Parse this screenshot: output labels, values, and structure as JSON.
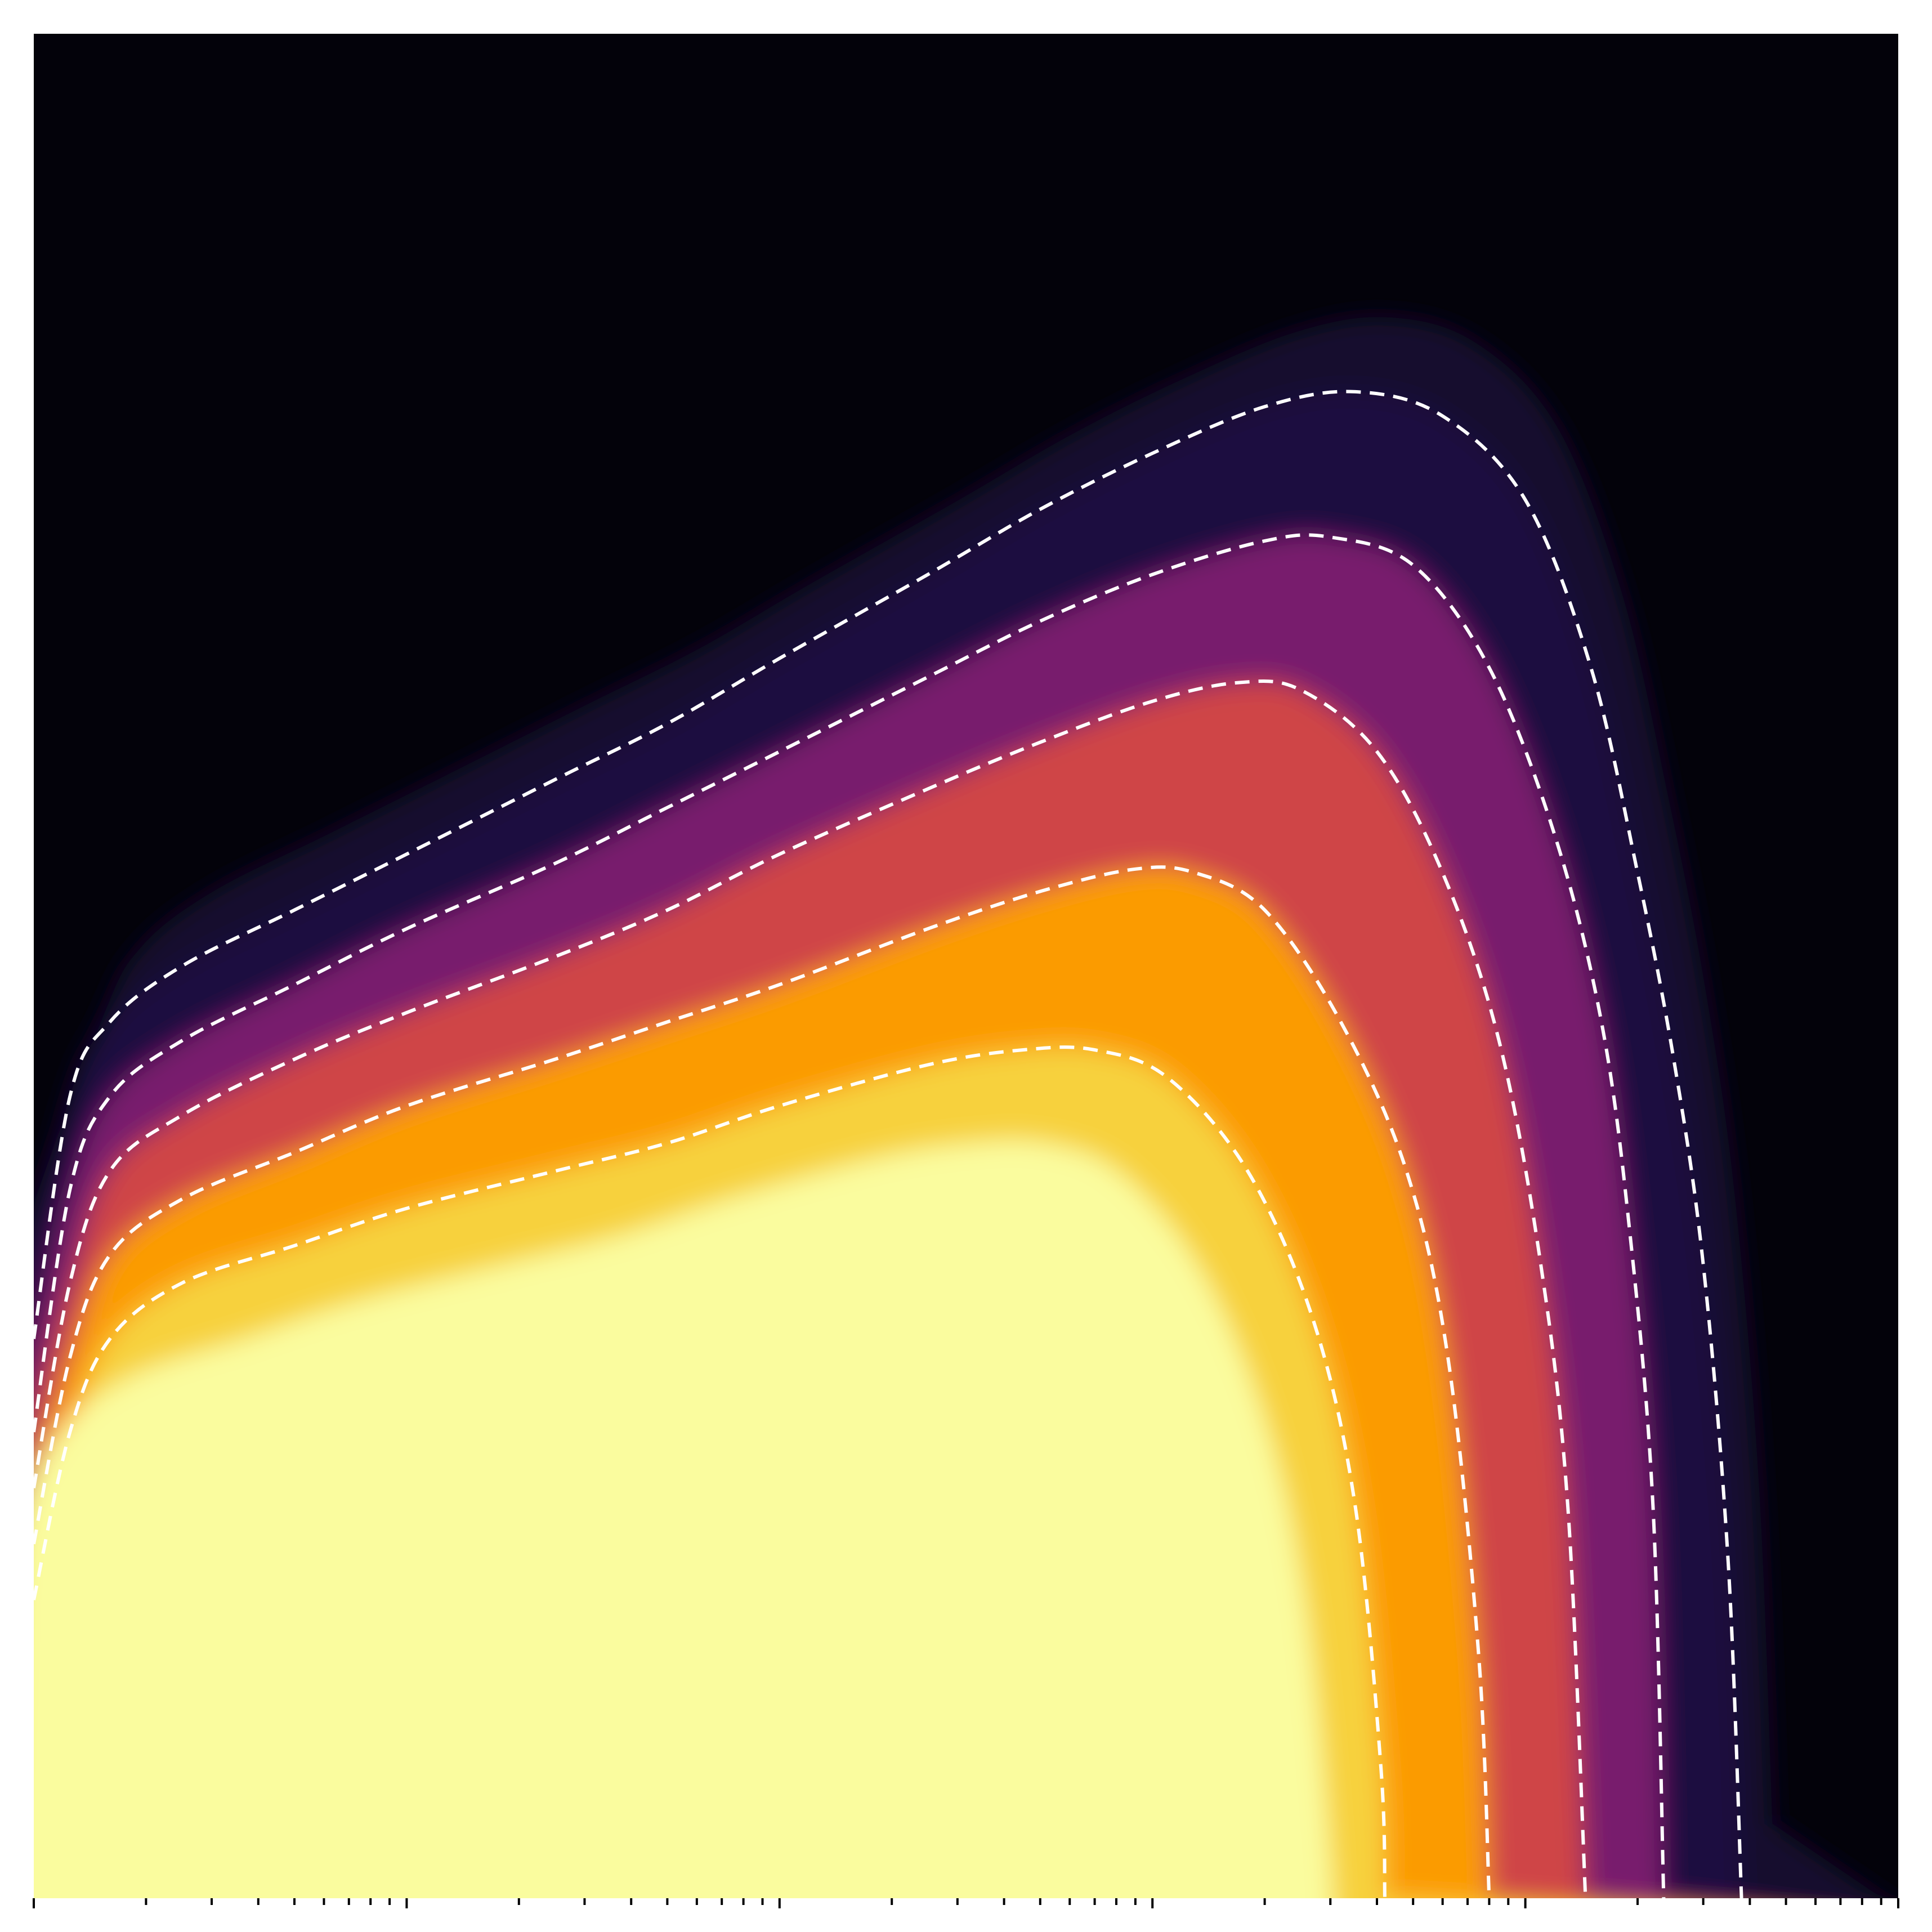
{
  "chart_data": {
    "type": "heatmap",
    "title": "",
    "xlabel": "",
    "ylabel": "",
    "x_scale": "log",
    "xlim": [
      1,
      100000
    ],
    "ylim": [
      0,
      1
    ],
    "tick_labels_visible": false,
    "colormap": "inferno",
    "colormap_stops": [
      "#000004",
      "#1b0c41",
      "#4a0c6b",
      "#781c6d",
      "#a52c60",
      "#cf4446",
      "#ed6925",
      "#fb9b06",
      "#f7d13d",
      "#fcffa4"
    ],
    "plateau_color": "#fafc9e",
    "background_color": "#03020a",
    "contours": [
      {
        "level": 0.1,
        "style": "dashed",
        "color": "#ffffff",
        "points": [
          [
            1.0,
            0.3
          ],
          [
            1.25,
            0.43
          ],
          [
            1.6,
            0.47
          ],
          [
            2.5,
            0.5
          ],
          [
            5,
            0.53
          ],
          [
            10,
            0.56
          ],
          [
            25,
            0.6
          ],
          [
            50,
            0.63
          ],
          [
            100,
            0.665
          ],
          [
            250,
            0.71
          ],
          [
            500,
            0.745
          ],
          [
            1000,
            0.775
          ],
          [
            2000,
            0.8
          ],
          [
            3500,
            0.808
          ],
          [
            6000,
            0.795
          ],
          [
            10000,
            0.75
          ],
          [
            15000,
            0.66
          ],
          [
            20000,
            0.55
          ],
          [
            25000,
            0.45
          ],
          [
            30000,
            0.34
          ],
          [
            35000,
            0.18
          ],
          [
            38000,
            0.0
          ]
        ]
      },
      {
        "level": 0.3,
        "style": "dashed",
        "color": "#ffffff",
        "points": [
          [
            1.0,
            0.25
          ],
          [
            1.25,
            0.38
          ],
          [
            1.6,
            0.43
          ],
          [
            2.5,
            0.46
          ],
          [
            5,
            0.49
          ],
          [
            10,
            0.52
          ],
          [
            25,
            0.555
          ],
          [
            50,
            0.585
          ],
          [
            100,
            0.615
          ],
          [
            250,
            0.655
          ],
          [
            500,
            0.685
          ],
          [
            1000,
            0.71
          ],
          [
            2000,
            0.728
          ],
          [
            3000,
            0.73
          ],
          [
            5000,
            0.715
          ],
          [
            8000,
            0.66
          ],
          [
            12000,
            0.57
          ],
          [
            16000,
            0.47
          ],
          [
            19000,
            0.36
          ],
          [
            22000,
            0.21
          ],
          [
            23500,
            0.0
          ]
        ]
      },
      {
        "level": 0.5,
        "style": "dashed",
        "color": "#ffffff",
        "points": [
          [
            1.0,
            0.22
          ],
          [
            1.25,
            0.33
          ],
          [
            1.6,
            0.39
          ],
          [
            2.5,
            0.42
          ],
          [
            5,
            0.45
          ],
          [
            10,
            0.475
          ],
          [
            25,
            0.505
          ],
          [
            50,
            0.53
          ],
          [
            100,
            0.56
          ],
          [
            250,
            0.595
          ],
          [
            500,
            0.62
          ],
          [
            1000,
            0.642
          ],
          [
            1700,
            0.652
          ],
          [
            2500,
            0.648
          ],
          [
            4000,
            0.615
          ],
          [
            6000,
            0.55
          ],
          [
            8500,
            0.46
          ],
          [
            11000,
            0.34
          ],
          [
            13000,
            0.21
          ],
          [
            14500,
            0.0
          ]
        ]
      },
      {
        "level": 0.7,
        "style": "dashed",
        "color": "#ffffff",
        "points": [
          [
            1.0,
            0.19
          ],
          [
            1.25,
            0.29
          ],
          [
            1.6,
            0.345
          ],
          [
            2.5,
            0.375
          ],
          [
            5,
            0.4
          ],
          [
            10,
            0.425
          ],
          [
            25,
            0.45
          ],
          [
            50,
            0.47
          ],
          [
            100,
            0.49
          ],
          [
            250,
            0.52
          ],
          [
            500,
            0.54
          ],
          [
            900,
            0.552
          ],
          [
            1300,
            0.55
          ],
          [
            2000,
            0.53
          ],
          [
            3200,
            0.47
          ],
          [
            4800,
            0.39
          ],
          [
            6200,
            0.29
          ],
          [
            7500,
            0.13
          ],
          [
            8000,
            0.0
          ]
        ]
      },
      {
        "level": 0.9,
        "style": "dashed",
        "color": "#ffffff",
        "points": [
          [
            1.0,
            0.16
          ],
          [
            1.25,
            0.25
          ],
          [
            1.6,
            0.3
          ],
          [
            2.5,
            0.33
          ],
          [
            5,
            0.35
          ],
          [
            10,
            0.37
          ],
          [
            25,
            0.39
          ],
          [
            50,
            0.405
          ],
          [
            100,
            0.425
          ],
          [
            250,
            0.447
          ],
          [
            450,
            0.455
          ],
          [
            700,
            0.455
          ],
          [
            1100,
            0.44
          ],
          [
            1800,
            0.39
          ],
          [
            2700,
            0.31
          ],
          [
            3500,
            0.21
          ],
          [
            4100,
            0.07
          ],
          [
            4200,
            0.0
          ]
        ]
      }
    ]
  }
}
